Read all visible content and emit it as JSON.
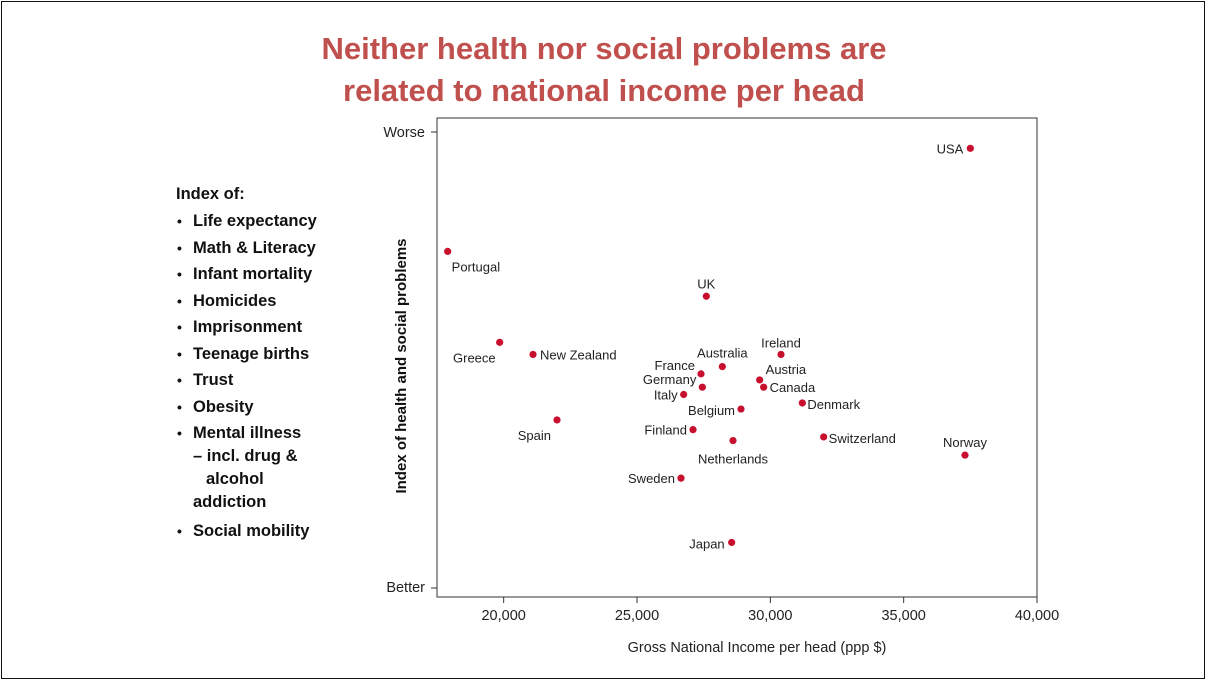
{
  "title_line1": "Neither health nor social problems are",
  "title_line2": "related to national income per head",
  "legend": {
    "header": "Index of:",
    "items": [
      "Life expectancy",
      "Math & Literacy",
      "Infant mortality",
      "Homicides",
      "Imprisonment",
      "Teenage births",
      "Trust",
      "Obesity",
      "Mental illness"
    ],
    "mental_sub1": "– incl. drug &",
    "mental_sub2": "alcohol",
    "mental_sub3": "addiction",
    "last_item": "Social mobility"
  },
  "chart_data": {
    "type": "scatter",
    "title": "Neither health nor social problems are related to national income per head",
    "xlabel": "Gross National Income per head (ppp $)",
    "ylabel": "Index of health and social problems",
    "xlim": [
      17500,
      40000
    ],
    "xticks": [
      20000,
      25000,
      30000,
      35000,
      40000
    ],
    "xtick_labels": [
      "20,000",
      "25,000",
      "30,000",
      "35,000",
      "40,000"
    ],
    "ylim": [
      -1.7,
      2.25
    ],
    "y_end_labels": {
      "top": "Worse",
      "bottom": "Better"
    },
    "point_color": "#c8102e",
    "points": [
      {
        "label": "USA",
        "x": 37500,
        "y": 2.0
      },
      {
        "label": "Portugal",
        "x": 17900,
        "y": 1.15
      },
      {
        "label": "UK",
        "x": 27600,
        "y": 0.78
      },
      {
        "label": "Greece",
        "x": 19850,
        "y": 0.4
      },
      {
        "label": "New Zealand",
        "x": 21100,
        "y": 0.3
      },
      {
        "label": "Ireland",
        "x": 30400,
        "y": 0.3
      },
      {
        "label": "Australia",
        "x": 28200,
        "y": 0.2
      },
      {
        "label": "France",
        "x": 27400,
        "y": 0.14
      },
      {
        "label": "Austria",
        "x": 29600,
        "y": 0.09
      },
      {
        "label": "Germany",
        "x": 27450,
        "y": 0.03
      },
      {
        "label": "Canada",
        "x": 29750,
        "y": 0.03
      },
      {
        "label": "Italy",
        "x": 26750,
        "y": -0.03
      },
      {
        "label": "Denmark",
        "x": 31200,
        "y": -0.1
      },
      {
        "label": "Belgium",
        "x": 28900,
        "y": -0.15
      },
      {
        "label": "Spain",
        "x": 22000,
        "y": -0.24
      },
      {
        "label": "Finland",
        "x": 27100,
        "y": -0.32
      },
      {
        "label": "Switzerland",
        "x": 32000,
        "y": -0.38
      },
      {
        "label": "Netherlands",
        "x": 28600,
        "y": -0.41
      },
      {
        "label": "Norway",
        "x": 37300,
        "y": -0.53
      },
      {
        "label": "Sweden",
        "x": 26650,
        "y": -0.72
      },
      {
        "label": "Japan",
        "x": 28550,
        "y": -1.25
      }
    ]
  }
}
